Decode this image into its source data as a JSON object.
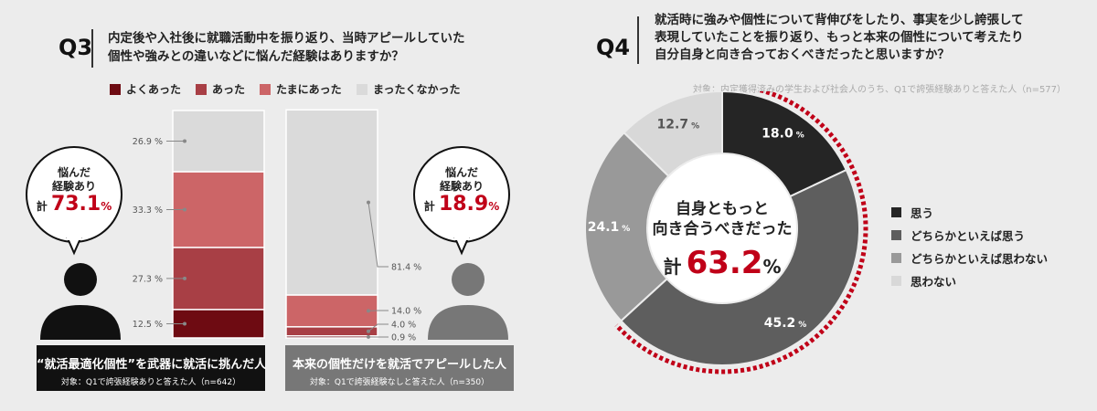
{
  "q3": {
    "label": "Q3",
    "question_line1": "内定後や入社後に就職活動中を振り返り、当時アピールしていた",
    "question_line2": "個性や強みとの違いなどに悩んだ経験はありますか？",
    "legend": [
      {
        "label": "よくあった",
        "color": "#6e0b12"
      },
      {
        "label": "あった",
        "color": "#a83f45"
      },
      {
        "label": "たまにあった",
        "color": "#cc6567"
      },
      {
        "label": "まったくなかった",
        "color": "#dadada"
      }
    ],
    "left_person": {
      "bubble_line1": "悩んだ",
      "bubble_line2": "経験あり",
      "total_prefix": "計",
      "total_value": "73.1",
      "total_unit": "%",
      "caption": "“就活最適化個性”を武器に就活に挑んだ人",
      "sub": "対象：Q1で誇張経験ありと答えた人（n=642）"
    },
    "right_person": {
      "bubble_line1": "悩んだ",
      "bubble_line2": "経験あり",
      "total_prefix": "計",
      "total_value": "18.9",
      "total_unit": "%",
      "caption": "本来の個性だけを就活でアピールした人",
      "sub": "対象：Q1で誇張経験なしと答えた人（n=350）"
    }
  },
  "q4": {
    "label": "Q4",
    "question_line1": "就活時に強みや個性について背伸びをしたり、事実を少し誇張して",
    "question_line2": "表現していたことを振り返り、もっと本来の個性について考えたり",
    "question_line3": "自分自身と向き合っておくべきだったと思いますか？",
    "note": "対象：内定獲得済みの学生および社会人のうち、Q1で誇張経験ありと答えた人（n=577）",
    "center_line1": "自身ともっと",
    "center_line2": "向き合うべきだった",
    "center_prefix": "計",
    "center_value": "63.2",
    "center_unit": "%"
  },
  "chart_data": [
    {
      "type": "bar",
      "stacked": true,
      "categories": [
        "“就活最適化個性”を武器に就活に挑んだ人",
        "本来の個性だけを就活でアピールした人"
      ],
      "series": [
        {
          "name": "よくあった",
          "values": [
            12.5,
            0.9
          ],
          "labels": [
            "12.5 %",
            "0.9 %"
          ],
          "color": "#6e0b12"
        },
        {
          "name": "あった",
          "values": [
            27.3,
            4.0
          ],
          "labels": [
            "27.3 %",
            "4.0 %"
          ],
          "color": "#a83f45"
        },
        {
          "name": "たまにあった",
          "values": [
            33.3,
            14.0
          ],
          "labels": [
            "33.3 %",
            "14.0 %"
          ],
          "color": "#cc6567"
        },
        {
          "name": "まったくなかった",
          "values": [
            26.9,
            81.4
          ],
          "labels": [
            "26.9 %",
            "81.4 %"
          ],
          "color": "#dadada"
        }
      ],
      "ylim": [
        0,
        100
      ]
    },
    {
      "type": "pie",
      "donut": true,
      "categories": [
        "思う",
        "どちらかといえば思う",
        "どちらかといえば思わない",
        "思わない"
      ],
      "values": [
        18.0,
        45.2,
        24.1,
        12.7
      ],
      "labels": [
        "18.0",
        "45.2",
        "24.1",
        "12.7"
      ],
      "unit": "%",
      "colors": [
        "#252525",
        "#5e5e5e",
        "#999999",
        "#d8d8d8"
      ],
      "highlight_color": "#c00018"
    }
  ]
}
